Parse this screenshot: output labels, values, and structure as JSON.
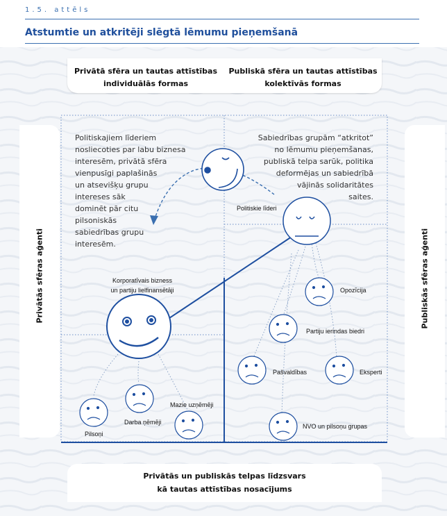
{
  "figure_label": "1.5. attēls",
  "title": "Atstumtie un atkritēji slēgtā lēmumu pieņemšanā",
  "header": {
    "left_line1": "Privātā sfēra un tautas attīstības",
    "left_line2": "individuālās formas",
    "right_line1": "Publiskā sfēra un tautas attīstības",
    "right_line2": "kolektīvās formas"
  },
  "side": {
    "left": "Privātās sfēras aģenti",
    "right": "Publiskās sfēras aģenti"
  },
  "paragraphs": {
    "left": [
      "Politiskajiem līderiem",
      "nosliecoties par labu biznesa",
      "interesēm, privātā sfēra",
      "vienpusīgi paplašinās",
      "un atsevišķu grupu",
      "intereses sāk",
      "dominēt pār citu",
      "pilsoniskās",
      "sabiedrības grupu",
      "interesēm."
    ],
    "right": [
      "Sabiedrības grupām “atkritot”",
      "no lēmumu pieņemšanas,",
      "publiskā telpa sarūk, politika",
      "deformējas un sabiedrībā",
      "vājinās solidaritātes",
      "saites."
    ]
  },
  "labels": {
    "politiskie_lideri": "Politiskie līderi",
    "korporativais_line1": "Korporatīvais bizness",
    "korporativais_line2": "un partiju lielfinansētāji",
    "opozicija": "Opozīcija",
    "partiju_biedri": "Partiju ierindas biedri",
    "pasvaldibas": "Pašvaldības",
    "eksperti": "Eksperti",
    "nvo": "NVO un pilsoņu grupas",
    "pilsoni": "Pilsoņi",
    "darba_nemeji": "Darba ņēmēji",
    "mazie": "Mazie uzņēmēji"
  },
  "bottom": {
    "line1": "Privātās un publiskās telpas līdzsvars",
    "line2": "kā tautas attīstības nosacījums"
  },
  "colors": {
    "accent": "#1f4f9c",
    "face_stroke": "#1e4fa0",
    "dots": "#3a6fb0"
  },
  "icons": [
    "happy-face-icon",
    "sad-face-icon",
    "neutral-face-icon",
    "winking-face-icon",
    "dashed-arrow-icon"
  ]
}
